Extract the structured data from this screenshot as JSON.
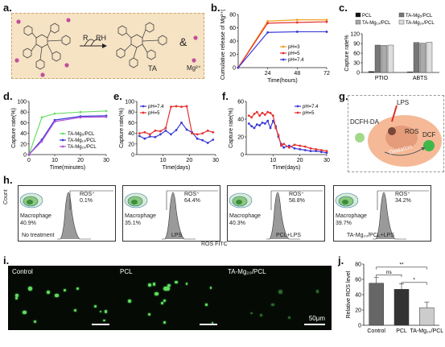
{
  "labels": {
    "a": "a.",
    "b": "b.",
    "c": "c.",
    "d": "d.",
    "e": "e.",
    "f": "f.",
    "g": "g.",
    "h": "h.",
    "i": "i.",
    "j": "j."
  },
  "panel_a": {
    "r": "R",
    "rh": "RH",
    "ta": "TA",
    "amp": "&",
    "mg": "Mg²⁺"
  },
  "panel_g": {
    "lps": "LPS",
    "dcfh": "DCFH-DA",
    "ros": "ROS",
    "oxidation": "Oxidation",
    "dcf": "DCF"
  },
  "panel_h": {
    "x_axis": "ROS FITC",
    "y_axis": "Count",
    "plots": [
      {
        "ros_label": "ROS⁺",
        "ros_val": "0.1%",
        "mac_label": "Macrophage",
        "mac_val": "40.9%",
        "cond": "No treatment"
      },
      {
        "ros_label": "ROS⁺",
        "ros_val": "64.4%",
        "mac_label": "Macrophage",
        "mac_val": "35.1%",
        "cond": "LPS"
      },
      {
        "ros_label": "ROS⁺",
        "ros_val": "58.8%",
        "mac_label": "Macrophage",
        "mac_val": "40.3%",
        "cond": "PCL+LPS"
      },
      {
        "ros_label": "ROS⁺",
        "ros_val": "34.2%",
        "mac_label": "Macrophage",
        "mac_val": "39.7%",
        "cond": "TA-Mg₂₀/PCL+LPS"
      }
    ]
  },
  "panel_i": {
    "images": [
      {
        "label": "Control"
      },
      {
        "label": "PCL"
      },
      {
        "label": "TA-Mg₂₀/PCL"
      }
    ],
    "scale": "50μm"
  },
  "colors": {
    "green": "#6ddc6d",
    "blue": "#3a3ad6",
    "purple": "#b34fd9",
    "red": "#e63030",
    "orange": "#f0a020",
    "pink_dot": "#c0509a"
  },
  "chart_data": [
    {
      "id": "b",
      "type": "line",
      "xlabel": "Time(hours)",
      "ylabel": "Cumulative release of Mg²⁺(%)",
      "x": [
        0,
        24,
        48,
        72
      ],
      "xticks": [
        "24",
        "48",
        "72"
      ],
      "ylim": [
        0,
        80
      ],
      "yticks": [
        "0",
        "20",
        "40",
        "60",
        "80"
      ],
      "legend": "bottom-right",
      "series": [
        {
          "name": "pH=3",
          "color": "#f0a020",
          "values": [
            0,
            70,
            72,
            72
          ]
        },
        {
          "name": "pH=5",
          "color": "#e63030",
          "values": [
            0,
            67,
            68,
            69
          ]
        },
        {
          "name": "pH=7.4",
          "color": "#3a3ad6",
          "values": [
            0,
            53,
            54,
            54
          ]
        }
      ]
    },
    {
      "id": "c",
      "type": "bar",
      "ylabel": "Capture rate%",
      "ylim": [
        0,
        120
      ],
      "yticks": [
        "0",
        "30",
        "60",
        "90",
        "120"
      ],
      "categories": [
        "PTIO",
        "ABTS"
      ],
      "legend": "top",
      "series": [
        {
          "name": "PCL",
          "color": "#111111",
          "values": [
            3,
            2
          ]
        },
        {
          "name": "TA-Mg₅/PCL",
          "color": "#777777",
          "values": [
            85,
            93
          ]
        },
        {
          "name": "TA-Mg₁₀/PCL",
          "color": "#aaaaaa",
          "values": [
            84,
            91
          ]
        },
        {
          "name": "TA-Mg₂₀/PCL",
          "color": "#dddddd",
          "values": [
            85,
            94
          ]
        }
      ]
    },
    {
      "id": "d",
      "type": "line",
      "xlabel": "Time(minutes)",
      "ylabel": "Capture rate(%)",
      "x": [
        0,
        5,
        10,
        20,
        30
      ],
      "xlim": [
        0,
        30
      ],
      "xticks": [
        "0",
        "10",
        "20",
        "30"
      ],
      "ylim": [
        0,
        100
      ],
      "yticks": [
        "0",
        "20",
        "40",
        "60",
        "80",
        "100"
      ],
      "legend": "bottom-right",
      "series": [
        {
          "name": "TA-Mg₅/PCL",
          "color": "#6ddc6d",
          "values": [
            0,
            70,
            77,
            80,
            82
          ]
        },
        {
          "name": "TA-Mg₁₀/PCL",
          "color": "#3a3ad6",
          "values": [
            0,
            28,
            65,
            72,
            73
          ]
        },
        {
          "name": "TA-Mg₂₀/PCL",
          "color": "#b34fd9",
          "values": [
            0,
            25,
            62,
            70,
            71
          ]
        }
      ]
    },
    {
      "id": "e",
      "type": "line",
      "xlabel": "Time(days)",
      "ylabel": "Capture rate(%)",
      "x": [
        1,
        3,
        5,
        7,
        9,
        11,
        13,
        15,
        17,
        19,
        21,
        23,
        25,
        27,
        29
      ],
      "xlim": [
        0,
        30
      ],
      "xticks": [
        "10",
        "20",
        "30"
      ],
      "ylim": [
        0,
        100
      ],
      "yticks": [
        "0",
        "20",
        "40",
        "60",
        "80",
        "100"
      ],
      "legend": "top-left",
      "series": [
        {
          "name": "pH=7.4",
          "color": "#3a3ad6",
          "values": [
            35,
            30,
            34,
            33,
            38,
            45,
            38,
            46,
            60,
            47,
            42,
            30,
            27,
            22,
            28
          ]
        },
        {
          "name": "pH=5",
          "color": "#e63030",
          "values": [
            40,
            42,
            38,
            45,
            44,
            50,
            90,
            91,
            90,
            91,
            40,
            38,
            40,
            45,
            42
          ]
        }
      ]
    },
    {
      "id": "f",
      "type": "line",
      "xlabel": "Time(days)",
      "ylabel": "Capture rate(%)",
      "x": [
        1,
        2,
        3,
        4,
        5,
        6,
        7,
        8,
        9,
        10,
        11,
        12,
        13,
        14,
        16,
        18,
        20,
        22,
        24,
        26,
        28,
        30
      ],
      "xlim": [
        0,
        30
      ],
      "xticks": [
        "10",
        "20",
        "30"
      ],
      "ylim": [
        0,
        60
      ],
      "yticks": [
        "0",
        "20",
        "40",
        "60"
      ],
      "legend": "top-right",
      "series": [
        {
          "name": "pH=7.4",
          "color": "#3a3ad6",
          "values": [
            35,
            32,
            30,
            34,
            33,
            36,
            35,
            38,
            30,
            38,
            32,
            20,
            12,
            8,
            10,
            7,
            6,
            5,
            4,
            4,
            3,
            2
          ]
        },
        {
          "name": "pH=5",
          "color": "#e63030",
          "values": [
            44,
            42,
            46,
            48,
            44,
            47,
            45,
            48,
            47,
            44,
            30,
            22,
            10,
            12,
            8,
            11,
            10,
            9,
            7,
            6,
            5,
            4
          ]
        }
      ]
    },
    {
      "id": "j",
      "type": "bar",
      "ylabel": "Relative ROS level",
      "ylim": [
        0,
        80
      ],
      "yticks": [
        "0",
        "20",
        "40",
        "60",
        "80"
      ],
      "categories": [
        "Control",
        "PCL",
        "TA-Mg₂₀/PCL"
      ],
      "colors": [
        "#666666",
        "#333333",
        "#cccccc"
      ],
      "values": [
        55,
        47,
        23
      ],
      "annotations": [
        "ns",
        "**",
        "*"
      ]
    }
  ]
}
